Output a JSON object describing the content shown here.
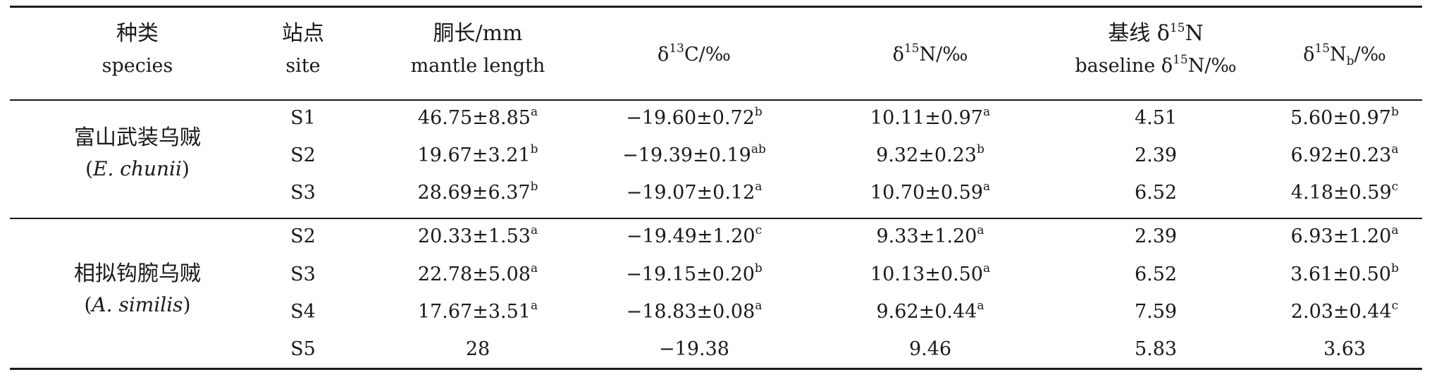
{
  "headers": {
    "species_zh": "种类",
    "species_en": "species",
    "site_zh": "站点",
    "site_en": "site",
    "mantle_zh": "胴长/mm",
    "mantle_en": "mantle length",
    "d13c_pre": "δ",
    "d13c_sup": "13",
    "d13c_post": "C/‰",
    "d15n_pre": "δ",
    "d15n_sup": "15",
    "d15n_post": "N/‰",
    "base_zh_pre": "基线 δ",
    "base_zh_sup": "15",
    "base_zh_post": "N",
    "base_en_pre": "baseline δ",
    "base_en_sup": "15",
    "base_en_post": "N/‰",
    "nb_pre": "δ",
    "nb_sup": "15",
    "nb_mid": "N",
    "nb_sub": "b",
    "nb_post": "/‰"
  },
  "groups": [
    {
      "name_zh": "富山武装乌贼",
      "sci_open": "(",
      "sci_name": "E. chunii",
      "sci_close": ")",
      "rows": [
        {
          "site": "S1",
          "mantle": "46.75±8.85",
          "mantle_sup": "a",
          "d13c": "−19.60±0.72",
          "d13c_sup": "b",
          "d15n": "10.11±0.97",
          "d15n_sup": "a",
          "baseline": "4.51",
          "nb": "5.60±0.97",
          "nb_sup": "b"
        },
        {
          "site": "S2",
          "mantle": "19.67±3.21",
          "mantle_sup": "b",
          "d13c": "−19.39±0.19",
          "d13c_sup": "ab",
          "d15n": "9.32±0.23",
          "d15n_sup": "b",
          "baseline": "2.39",
          "nb": "6.92±0.23",
          "nb_sup": "a"
        },
        {
          "site": "S3",
          "mantle": "28.69±6.37",
          "mantle_sup": "b",
          "d13c": "−19.07±0.12",
          "d13c_sup": "a",
          "d15n": "10.70±0.59",
          "d15n_sup": "a",
          "baseline": "6.52",
          "nb": "4.18±0.59",
          "nb_sup": "c"
        }
      ]
    },
    {
      "name_zh": "相拟钩腕乌贼",
      "sci_open": "(",
      "sci_name": "A. similis",
      "sci_close": ")",
      "rows": [
        {
          "site": "S2",
          "mantle": "20.33±1.53",
          "mantle_sup": "a",
          "d13c": "−19.49±1.20",
          "d13c_sup": "c",
          "d15n": "9.33±1.20",
          "d15n_sup": "a",
          "baseline": "2.39",
          "nb": "6.93±1.20",
          "nb_sup": "a"
        },
        {
          "site": "S3",
          "mantle": "22.78±5.08",
          "mantle_sup": "a",
          "d13c": "−19.15±0.20",
          "d13c_sup": "b",
          "d15n": "10.13±0.50",
          "d15n_sup": "a",
          "baseline": "6.52",
          "nb": "3.61±0.50",
          "nb_sup": "b"
        },
        {
          "site": "S4",
          "mantle": "17.67±3.51",
          "mantle_sup": "a",
          "d13c": "−18.83±0.08",
          "d13c_sup": "a",
          "d15n": "9.62±0.44",
          "d15n_sup": "a",
          "baseline": "7.59",
          "nb": "2.03±0.44",
          "nb_sup": "c"
        },
        {
          "site": "S5",
          "mantle": "28",
          "mantle_sup": "",
          "d13c": "−19.38",
          "d13c_sup": "",
          "d15n": "9.46",
          "d15n_sup": "",
          "baseline": "5.83",
          "nb": "3.63",
          "nb_sup": ""
        }
      ]
    }
  ]
}
